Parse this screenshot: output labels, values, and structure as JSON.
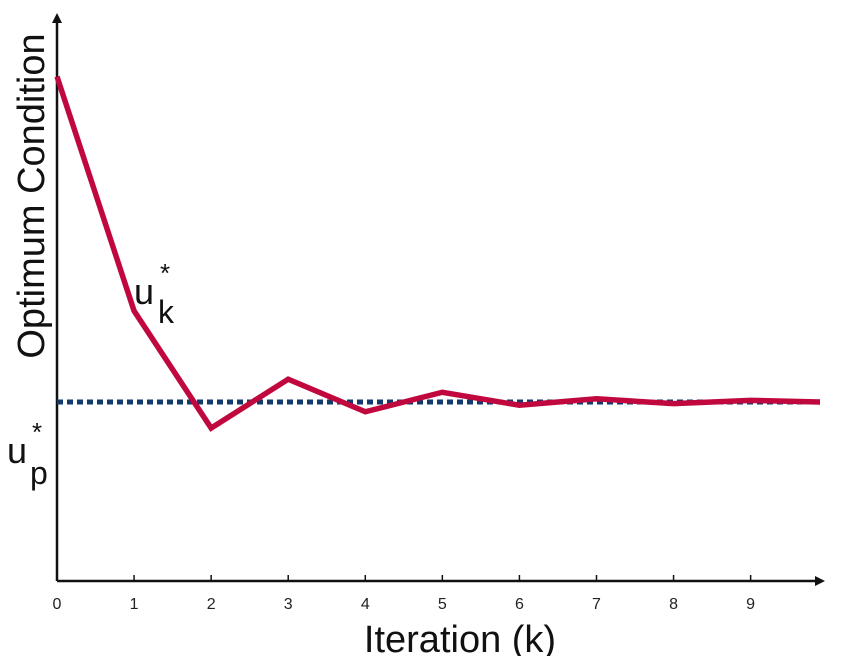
{
  "chart_data": {
    "type": "line",
    "xlabel": "Iteration (k)",
    "ylabel": "Optimum Condition",
    "x_ticks": [
      "0",
      "1",
      "2",
      "3",
      "4",
      "5",
      "6",
      "7",
      "8",
      "9"
    ],
    "xlim": [
      0,
      9.9
    ],
    "ylim": [
      -0.55,
      1.18
    ],
    "grid": false,
    "series": [
      {
        "label_base": "u",
        "label_sub": "k",
        "label_sup": "*",
        "color": "#c0083f",
        "style": "solid",
        "x": [
          0,
          1,
          2,
          3,
          4,
          5,
          6,
          7,
          8,
          9,
          9.9
        ],
        "y": [
          1.0,
          0.28,
          -0.08,
          0.07,
          -0.03,
          0.03,
          -0.01,
          0.01,
          -0.005,
          0.005,
          0.0
        ]
      },
      {
        "label_base": "u",
        "label_sub": "p",
        "label_sup": "*",
        "color": "#123a6b",
        "style": "dotted",
        "x": [
          0,
          9.9
        ],
        "y": [
          0.0,
          0.0
        ]
      }
    ]
  }
}
